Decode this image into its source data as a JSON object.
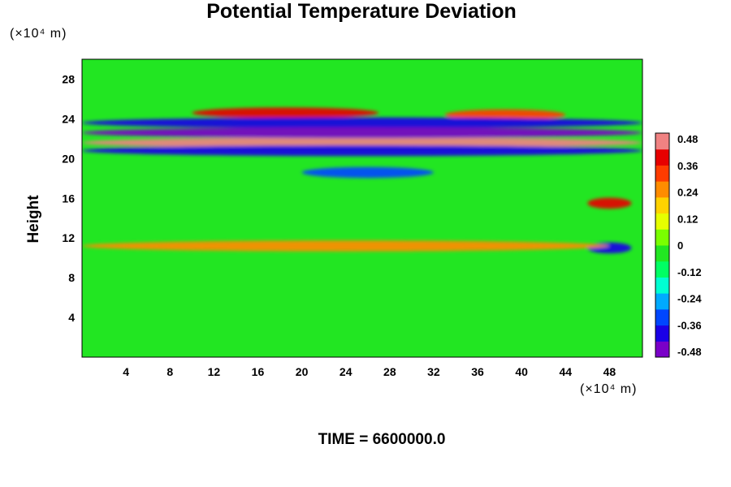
{
  "chart_data": {
    "type": "heatmap",
    "title": "Potential Temperature Deviation",
    "ylabel": "Height",
    "y_unit_label": "(×10⁴ m)",
    "x_unit_label": "(×10⁴ m)",
    "footer": "TIME = 6600000.0",
    "xlim": [
      0,
      51
    ],
    "ylim": [
      0,
      30
    ],
    "x_ticks": [
      4,
      8,
      12,
      16,
      20,
      24,
      28,
      32,
      36,
      40,
      44,
      48
    ],
    "y_ticks": [
      4,
      8,
      12,
      16,
      20,
      24,
      28
    ],
    "colorbar": {
      "min": -0.5,
      "max": 0.5,
      "ticks": [
        "0.48",
        "0.36",
        "0.24",
        "0.12",
        "0",
        "-0.12",
        "-0.24",
        "-0.36",
        "-0.48"
      ]
    },
    "background_value": 0,
    "features": [
      {
        "desc": "warm band",
        "y": 24.6,
        "x_range": [
          10,
          27
        ],
        "value": 0.4
      },
      {
        "desc": "warm band",
        "y": 24.4,
        "x_range": [
          33,
          44
        ],
        "value": 0.36
      },
      {
        "desc": "cold band",
        "y": 23.6,
        "x_range": [
          0,
          51
        ],
        "value": -0.42
      },
      {
        "desc": "warm layer",
        "y": 21.6,
        "x_range": [
          0,
          51
        ],
        "value": 0.5
      },
      {
        "desc": "cold layer",
        "y": 22.6,
        "x_range": [
          0,
          51
        ],
        "value": -0.48
      },
      {
        "desc": "cold layer",
        "y": 20.8,
        "x_range": [
          0,
          51
        ],
        "value": -0.45
      },
      {
        "desc": "cold patch",
        "y": 18.6,
        "x_range": [
          20,
          32
        ],
        "value": -0.36
      },
      {
        "desc": "warm plume",
        "y": 15.5,
        "x_range": [
          46,
          50
        ],
        "value": 0.42
      },
      {
        "desc": "cold patch",
        "y": 11.0,
        "x_range": [
          46,
          50
        ],
        "value": -0.4
      },
      {
        "desc": "warm streak",
        "y": 11.2,
        "x_range": [
          0,
          48
        ],
        "value": 0.3
      }
    ]
  },
  "colors": {
    "background_field": "#22e622",
    "colormap": [
      "#7a00c8",
      "#1a00e6",
      "#0046ff",
      "#00aaff",
      "#00ffd2",
      "#00ff64",
      "#22e622",
      "#7aff00",
      "#e6ff00",
      "#ffd200",
      "#ff8c00",
      "#ff3c00",
      "#e60000",
      "#f08282"
    ]
  }
}
